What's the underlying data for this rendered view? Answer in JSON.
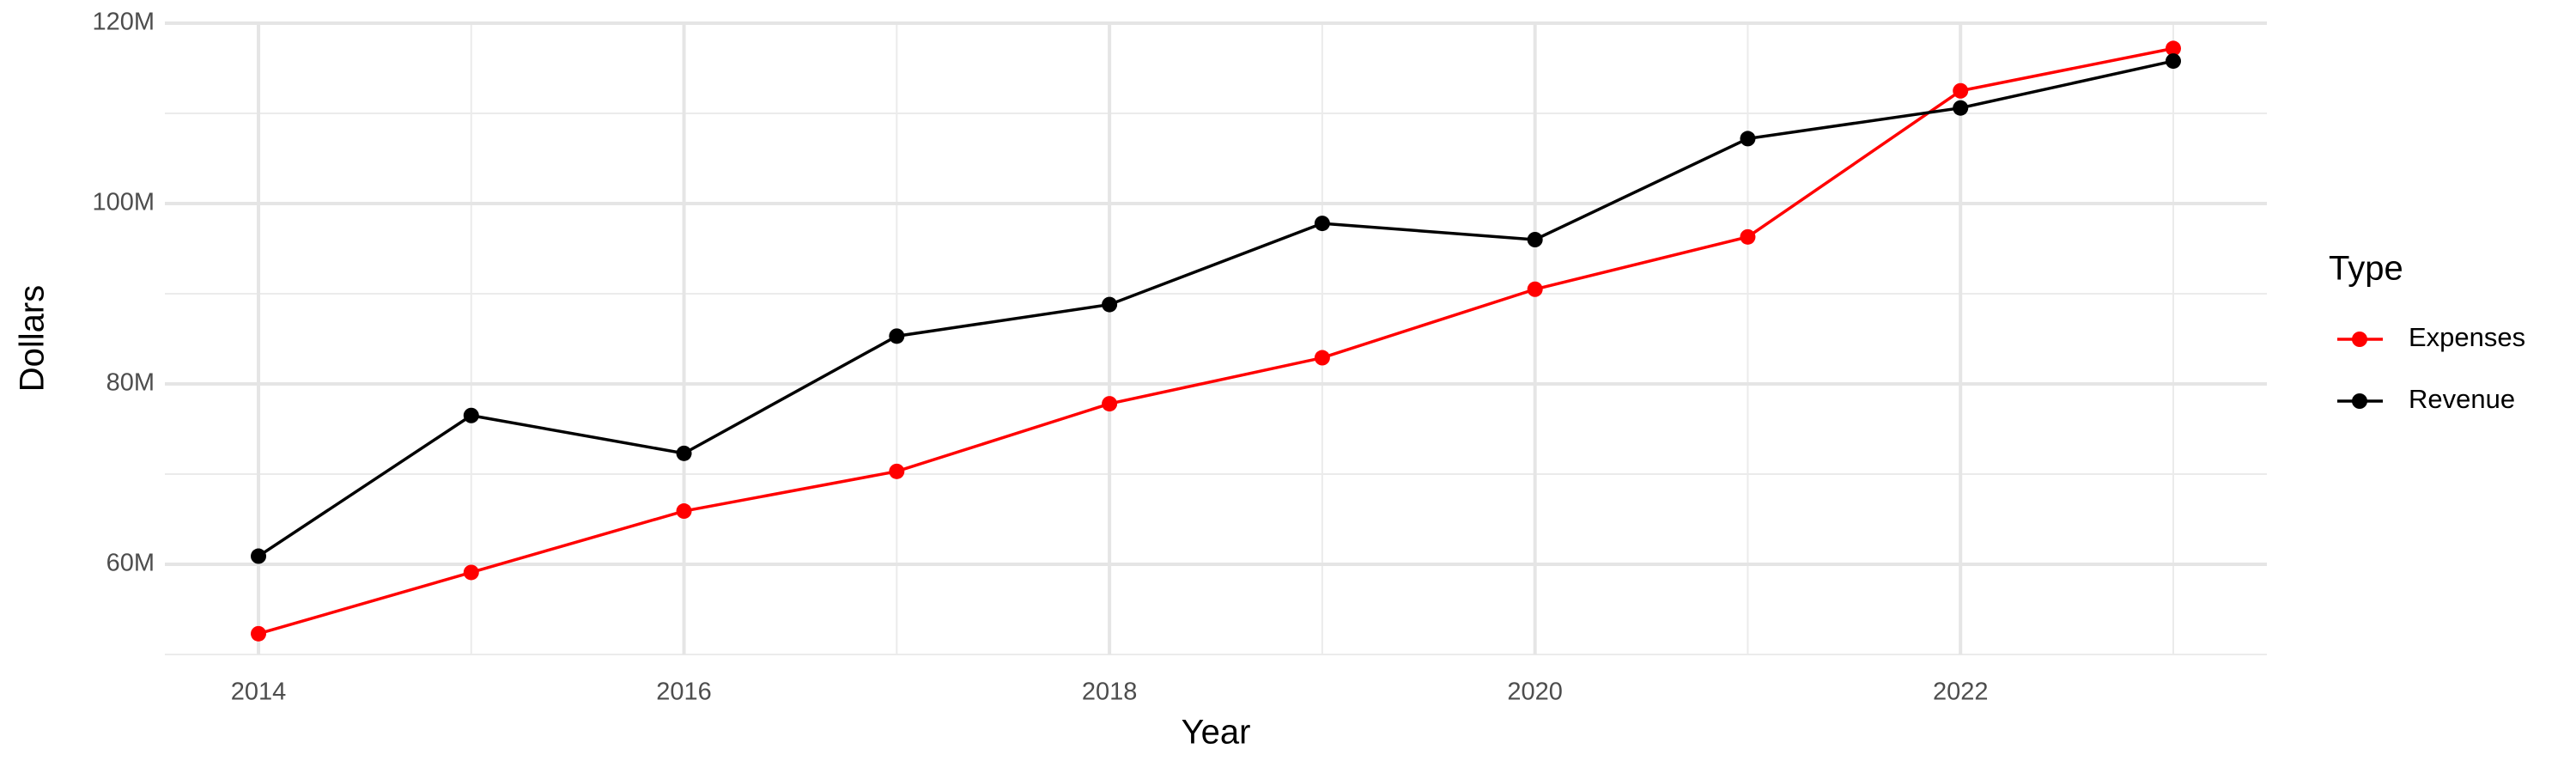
{
  "chart_data": {
    "type": "line",
    "x_label": "Year",
    "y_label": "Dollars",
    "x": [
      2014,
      2015,
      2016,
      2017,
      2018,
      2019,
      2020,
      2021,
      2022,
      2023
    ],
    "series": [
      {
        "name": "Expenses",
        "color": "#ff0000",
        "values": [
          52300000,
          59100000,
          65900000,
          70300000,
          77800000,
          82900000,
          90500000,
          96300000,
          112500000,
          117200000
        ]
      },
      {
        "name": "Revenue",
        "color": "#000000",
        "values": [
          60900000,
          76500000,
          72300000,
          85300000,
          88800000,
          97800000,
          96000000,
          107200000,
          110600000,
          115800000
        ]
      }
    ],
    "xlim": [
      2013.56,
      2023.44
    ],
    "xticks": [
      2014,
      2016,
      2018,
      2020,
      2022
    ],
    "ylim": [
      50000000,
      120000000
    ],
    "yticks": [
      {
        "value": 60000000,
        "label": "60M"
      },
      {
        "value": 80000000,
        "label": "80M"
      },
      {
        "value": 100000000,
        "label": "100M"
      },
      {
        "value": 120000000,
        "label": "120M"
      }
    ],
    "grid": true,
    "minor_grid": true,
    "legend_title": "Type",
    "legend_position": "right"
  }
}
